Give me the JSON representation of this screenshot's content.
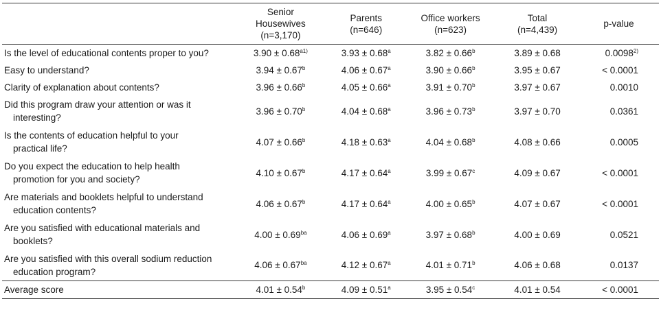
{
  "headers": [
    {
      "lines": [
        ""
      ]
    },
    {
      "lines": [
        "Senior",
        "Housewives",
        "(n=3,170)"
      ]
    },
    {
      "lines": [
        "Parents",
        "(n=646)"
      ]
    },
    {
      "lines": [
        "Office workers",
        "(n=623)"
      ]
    },
    {
      "lines": [
        "Total",
        "(n=4,439)"
      ]
    },
    {
      "lines": [
        "p-value"
      ]
    }
  ],
  "rows": [
    {
      "q": [
        "Is the level of educational contents proper to you?"
      ],
      "c": [
        [
          "3.90 ± 0.68",
          "a1)"
        ],
        [
          "3.93 ± 0.68",
          "a"
        ],
        [
          "3.82 ± 0.66",
          "b"
        ],
        [
          "3.89 ± 0.68",
          ""
        ]
      ],
      "p": [
        "0.0098",
        "2)"
      ]
    },
    {
      "q": [
        "Easy to understand?"
      ],
      "c": [
        [
          "3.94 ± 0.67",
          "b"
        ],
        [
          "4.06 ± 0.67",
          "a"
        ],
        [
          "3.90 ± 0.66",
          "b"
        ],
        [
          "3.95 ± 0.67",
          ""
        ]
      ],
      "p": [
        "< 0.0001",
        ""
      ]
    },
    {
      "q": [
        "Clarity of explanation about contents?"
      ],
      "c": [
        [
          "3.96 ± 0.66",
          "b"
        ],
        [
          "4.05 ± 0.66",
          "a"
        ],
        [
          "3.91 ± 0.70",
          "b"
        ],
        [
          "3.97 ± 0.67",
          ""
        ]
      ],
      "p": [
        "0.0010",
        ""
      ]
    },
    {
      "q": [
        "Did this program draw your attention or was it",
        "interesting?"
      ],
      "c": [
        [
          "3.96 ± 0.70",
          "b"
        ],
        [
          "4.04 ± 0.68",
          "a"
        ],
        [
          "3.96 ± 0.73",
          "b"
        ],
        [
          "3.97 ± 0.70",
          ""
        ]
      ],
      "p": [
        "0.0361",
        ""
      ]
    },
    {
      "q": [
        "Is the contents of education helpful to your",
        "practical life?"
      ],
      "c": [
        [
          "4.07 ± 0.66",
          "b"
        ],
        [
          "4.18 ± 0.63",
          "a"
        ],
        [
          "4.04 ± 0.68",
          "b"
        ],
        [
          "4.08 ± 0.66",
          ""
        ]
      ],
      "p": [
        "0.0005",
        ""
      ]
    },
    {
      "q": [
        "Do you expect the education to help health",
        "promotion for you and society?"
      ],
      "c": [
        [
          "4.10 ± 0.67",
          "b"
        ],
        [
          "4.17 ± 0.64",
          "a"
        ],
        [
          "3.99 ± 0.67",
          "c"
        ],
        [
          "4.09 ± 0.67",
          ""
        ]
      ],
      "p": [
        "< 0.0001",
        ""
      ]
    },
    {
      "q": [
        "Are materials and booklets helpful to understand",
        "education contents?"
      ],
      "c": [
        [
          "4.06 ± 0.67",
          "b"
        ],
        [
          "4.17 ± 0.64",
          "a"
        ],
        [
          "4.00 ± 0.65",
          "b"
        ],
        [
          "4.07 ± 0.67",
          ""
        ]
      ],
      "p": [
        "< 0.0001",
        ""
      ]
    },
    {
      "q": [
        "Are you satisfied with educational materials and",
        "booklets?"
      ],
      "c": [
        [
          "4.00 ± 0.69",
          "ba"
        ],
        [
          "4.06 ± 0.69",
          "a"
        ],
        [
          "3.97 ± 0.68",
          "b"
        ],
        [
          "4.00 ± 0.69",
          ""
        ]
      ],
      "p": [
        "0.0521",
        ""
      ]
    },
    {
      "q": [
        "Are you satisfied with this overall sodium reduction",
        "education program?"
      ],
      "c": [
        [
          "4.06 ± 0.67",
          "ba"
        ],
        [
          "4.12 ± 0.67",
          "a"
        ],
        [
          "4.01 ± 0.71",
          "b"
        ],
        [
          "4.06 ± 0.68",
          ""
        ]
      ],
      "p": [
        "0.0137",
        ""
      ]
    },
    {
      "q": [
        "Average score"
      ],
      "c": [
        [
          "4.01 ± 0.54",
          "b"
        ],
        [
          "4.09 ± 0.51",
          "a"
        ],
        [
          "3.95 ± 0.54",
          "c"
        ],
        [
          "4.01 ± 0.54",
          ""
        ]
      ],
      "p": [
        "< 0.0001",
        ""
      ]
    }
  ]
}
